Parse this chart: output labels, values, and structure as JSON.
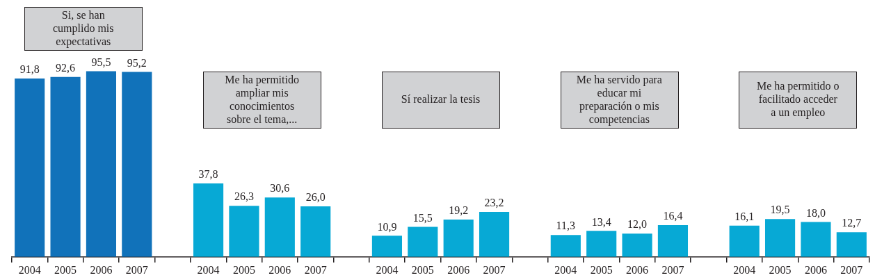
{
  "chart_data": {
    "type": "bar",
    "tick_labels": "x",
    "categories": [
      "2004",
      "2005",
      "2006",
      "2007",
      null,
      "2004",
      "2005",
      "2006",
      "2007",
      null,
      "2004",
      "2005",
      "2006",
      "2007",
      null,
      "2004",
      "2005",
      "2006",
      "2007",
      null,
      "2004",
      "2005",
      "2006",
      "2007"
    ],
    "values": [
      91.8,
      92.6,
      95.5,
      95.2,
      null,
      37.8,
      26.3,
      30.6,
      26.0,
      null,
      10.9,
      15.5,
      19.2,
      23.2,
      null,
      11.3,
      13.4,
      12.0,
      16.4,
      null,
      16.1,
      19.5,
      18.0,
      12.7
    ],
    "colors": [
      "#1172ba",
      "#1172ba",
      "#1172ba",
      "#1172ba",
      null,
      "#07a9d5",
      "#07a9d5",
      "#07a9d5",
      "#07a9d5",
      null,
      "#07a9d5",
      "#07a9d5",
      "#07a9d5",
      "#07a9d5",
      null,
      "#07a9d5",
      "#07a9d5",
      "#07a9d5",
      "#07a9d5",
      null,
      "#07a9d5",
      "#07a9d5",
      "#07a9d5",
      "#07a9d5"
    ],
    "value_labels": [
      "91,8",
      "92,6",
      "95,5",
      "95,2",
      null,
      "37,8",
      "26,3",
      "30,6",
      "26,0",
      null,
      "10,9",
      "15,5",
      "19,2",
      "23,2",
      null,
      "11,3",
      "13,4",
      "12,0",
      "16,4",
      null,
      "16,1",
      "19,5",
      "18,0",
      "12,7"
    ],
    "annotations": [
      "Si, se han cumplido mis expectativas",
      "Me ha permitido ampliar mis conocimientos sobre el tema,...",
      "Sí realizar la tesis",
      "Me ha servido para educar mi preparación o mis competencias",
      "Me ha permitido o facilitado acceder a un empleo"
    ]
  }
}
